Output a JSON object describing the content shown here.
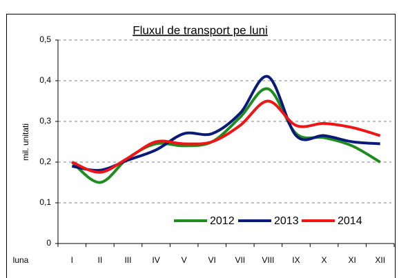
{
  "chart_data": {
    "type": "line",
    "title": "Fluxul de transport pe luni",
    "y_label": "mil. unitati",
    "x_label": "luna",
    "categories": [
      "I",
      "II",
      "III",
      "IV",
      "V",
      "VI",
      "VII",
      "VIII",
      "IX",
      "X",
      "XI",
      "XII"
    ],
    "series": [
      {
        "name": "2012",
        "color": "#1e8c1e",
        "values": [
          0.2,
          0.15,
          0.21,
          0.245,
          0.24,
          0.25,
          0.31,
          0.38,
          0.27,
          0.26,
          0.24,
          0.2
        ]
      },
      {
        "name": "2013",
        "color": "#0a1a7a",
        "values": [
          0.19,
          0.18,
          0.205,
          0.23,
          0.27,
          0.27,
          0.32,
          0.41,
          0.265,
          0.265,
          0.25,
          0.245
        ]
      },
      {
        "name": "2014",
        "color": "#f01414",
        "values": [
          0.2,
          0.175,
          0.21,
          0.25,
          0.245,
          0.25,
          0.29,
          0.35,
          0.29,
          0.295,
          0.285,
          0.265
        ]
      }
    ],
    "ylim": [
      0,
      0.5
    ],
    "yticks": [
      0,
      {
        "value": 0.1,
        "label": "0,1"
      },
      {
        "value": 0.2,
        "label": "0,2"
      },
      {
        "value": 0.3,
        "label": "0,3"
      },
      {
        "value": 0.4,
        "label": "0,4"
      },
      {
        "value": 0.5,
        "label": "0,5"
      }
    ],
    "grid": true,
    "legend": "bottom"
  }
}
